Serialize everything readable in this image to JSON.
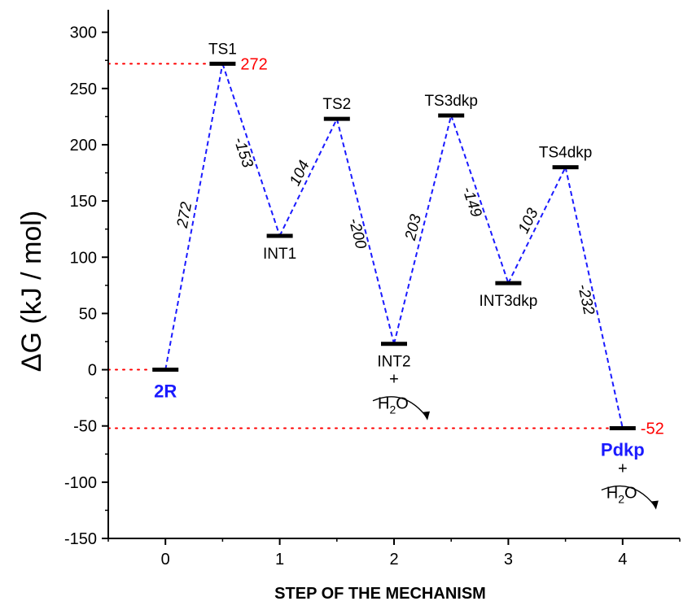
{
  "chart_data": {
    "type": "line",
    "title": "",
    "xlabel": "STEP OF THE MECHANISM",
    "ylabel": "ΔG (kJ / mol)",
    "xlim": [
      -0.5,
      4.5
    ],
    "ylim": [
      -150,
      320
    ],
    "xticks": [
      0,
      1,
      2,
      3,
      4
    ],
    "yticks": [
      -150,
      -100,
      -50,
      0,
      50,
      100,
      150,
      200,
      250,
      300
    ],
    "grid": false,
    "colors": {
      "path": "#1a1aff",
      "reference": "#ff0000",
      "level": "#000000",
      "highlight_label": "#1a1aff"
    },
    "states": [
      {
        "label": "2R",
        "x": 0.0,
        "y": 0,
        "highlight": true
      },
      {
        "label": "TS1",
        "x": 0.5,
        "y": 272
      },
      {
        "label": "INT1",
        "x": 1.0,
        "y": 119
      },
      {
        "label": "TS2",
        "x": 1.5,
        "y": 223
      },
      {
        "label": "INT2",
        "x": 2.0,
        "y": 23,
        "plus_water": true
      },
      {
        "label": "TS3dkp",
        "x": 2.5,
        "y": 226
      },
      {
        "label": "INT3dkp",
        "x": 3.0,
        "y": 77
      },
      {
        "label": "TS4dkp",
        "x": 3.5,
        "y": 180
      },
      {
        "label": "Pdkp",
        "x": 4.0,
        "y": -52,
        "highlight": true,
        "plus_water": true
      }
    ],
    "differences": [
      "272",
      "-153",
      "104",
      "-200",
      "203",
      "-149",
      "103",
      "-232"
    ],
    "reference_lines": [
      {
        "y": 272,
        "label": "272"
      },
      {
        "y": 0,
        "label": ""
      },
      {
        "y": -52,
        "label": "-52"
      }
    ],
    "water": {
      "plus": "+",
      "formula": "H",
      "subscript": "2",
      "suffix": "O"
    }
  }
}
